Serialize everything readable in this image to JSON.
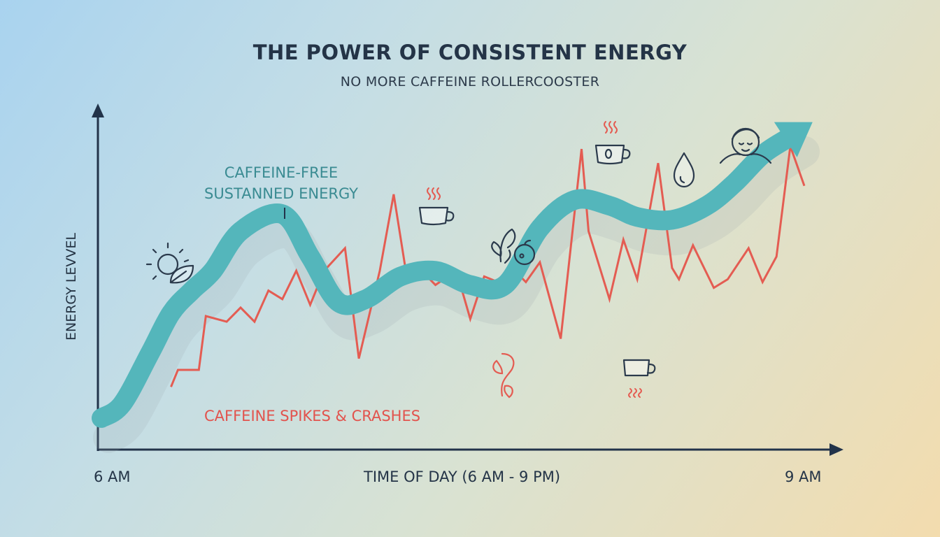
{
  "title": "THE POWER OF CONSISTENT ENERGY",
  "subtitle": "NO MORE CAFFEINE ROLLERCOOSTER",
  "colors": {
    "sustained": "#54b6bb",
    "caffeine": "#e45c52",
    "axis": "#22334a",
    "icon": "#2b3a4c"
  },
  "icons": [
    "sun-leaf-icon",
    "coffee-cup-icon",
    "fruit-leaf-icon",
    "plant-sprout-icon",
    "coffee-cup-icon",
    "tipped-cup-icon",
    "water-drop-icon",
    "calm-face-icon"
  ],
  "chart_data": {
    "type": "line",
    "xlabel": "TIME OF DAY (6 AM - 9 PM)",
    "ylabel": "ENERGY LEVVEL",
    "x_ticks": [
      "6 AM",
      "9 AM"
    ],
    "xlim": [
      0,
      1
    ],
    "ylim": [
      0,
      1
    ],
    "grid": false,
    "series": [
      {
        "name": "CAFFEINE-FREE SUSTANNED ENERGY",
        "label_lines": [
          "CAFFEINE-FREE",
          "SUSTANNED ENERGY"
        ],
        "x": [
          0.0,
          0.03,
          0.07,
          0.1,
          0.13,
          0.16,
          0.2,
          0.26,
          0.3,
          0.34,
          0.38,
          0.43,
          0.48,
          0.53,
          0.58,
          0.63,
          0.68,
          0.73,
          0.77,
          0.82,
          0.87,
          0.91,
          0.95,
          1.0
        ],
        "values": [
          0.03,
          0.08,
          0.26,
          0.4,
          0.48,
          0.55,
          0.69,
          0.75,
          0.6,
          0.44,
          0.45,
          0.53,
          0.55,
          0.5,
          0.5,
          0.7,
          0.8,
          0.78,
          0.74,
          0.73,
          0.78,
          0.86,
          0.96,
          1.04
        ]
      },
      {
        "name": "CAFFEINE SPIKES & CRASHES",
        "x": [
          0.1,
          0.11,
          0.14,
          0.15,
          0.18,
          0.2,
          0.22,
          0.24,
          0.26,
          0.28,
          0.3,
          0.32,
          0.35,
          0.37,
          0.4,
          0.42,
          0.44,
          0.46,
          0.48,
          0.51,
          0.53,
          0.55,
          0.57,
          0.59,
          0.61,
          0.63,
          0.66,
          0.69,
          0.7,
          0.73,
          0.75,
          0.77,
          0.8,
          0.82,
          0.83,
          0.85,
          0.88,
          0.9,
          0.93,
          0.95,
          0.97,
          0.99,
          1.01
        ],
        "values": [
          0.14,
          0.2,
          0.2,
          0.39,
          0.37,
          0.42,
          0.37,
          0.48,
          0.45,
          0.55,
          0.43,
          0.55,
          0.63,
          0.24,
          0.55,
          0.82,
          0.51,
          0.55,
          0.5,
          0.55,
          0.38,
          0.53,
          0.51,
          0.56,
          0.51,
          0.58,
          0.31,
          0.98,
          0.69,
          0.45,
          0.66,
          0.52,
          0.93,
          0.56,
          0.52,
          0.64,
          0.49,
          0.52,
          0.63,
          0.51,
          0.6,
          0.99,
          0.85
        ]
      }
    ]
  }
}
